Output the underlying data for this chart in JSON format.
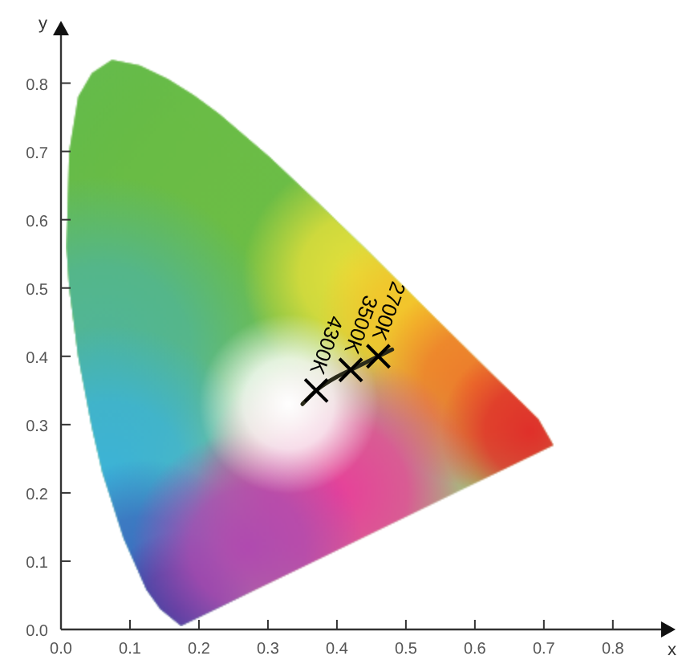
{
  "chart_data": {
    "type": "scatter",
    "xlabel": "x",
    "ylabel": "y",
    "xlim": [
      0,
      0.87
    ],
    "ylim": [
      0,
      0.87
    ],
    "xticks": [
      {
        "value": 0,
        "label": "0.0"
      },
      0.1,
      0.2,
      0.3,
      0.4,
      0.5,
      0.6,
      0.7,
      0.8
    ],
    "yticks": [
      {
        "value": 0,
        "label": "0.0"
      },
      0.1,
      0.2,
      0.3,
      0.4,
      0.5,
      0.6,
      0.7,
      0.8
    ],
    "series": [
      {
        "type": "line",
        "color": "#2a2a1a",
        "marker": "none",
        "x": [
          0.35,
          0.37,
          0.4,
          0.42,
          0.44,
          0.46,
          0.48
        ],
        "values": [
          0.33,
          0.35,
          0.37,
          0.38,
          0.39,
          0.4,
          0.41
        ]
      },
      {
        "type": "scatter",
        "color": "#000000",
        "marker": "cross",
        "x": [
          0.37,
          0.42,
          0.46
        ],
        "values": [
          0.35,
          0.38,
          0.4
        ]
      }
    ],
    "annotations": [
      {
        "text": "4300K",
        "x": 0.37,
        "y": 0.35
      },
      {
        "text": "3500K",
        "x": 0.42,
        "y": 0.38
      },
      {
        "text": "2700K",
        "x": 0.46,
        "y": 0.4
      }
    ]
  }
}
